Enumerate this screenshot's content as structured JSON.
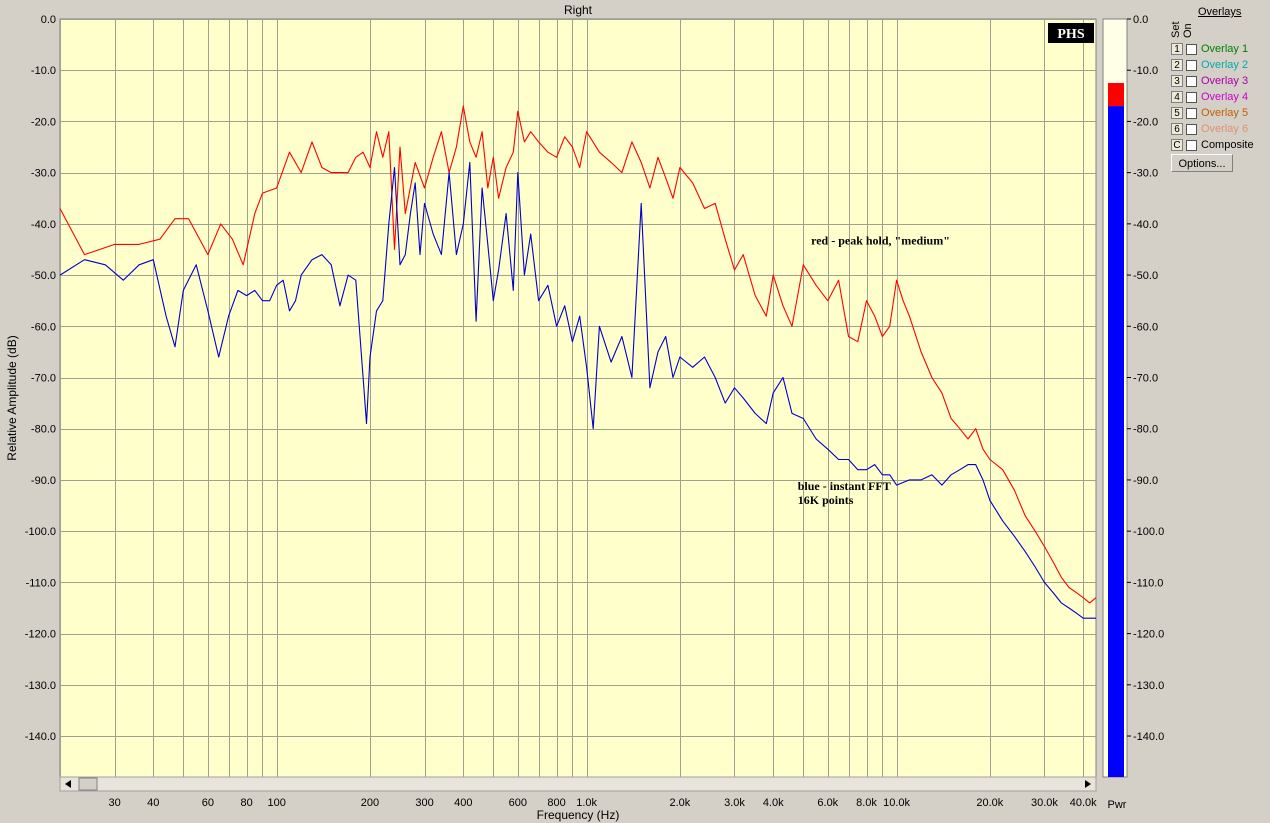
{
  "window": {
    "title": "Right"
  },
  "chart_data": {
    "type": "line",
    "title": "Right",
    "xlabel": "Frequency (Hz)",
    "ylabel": "Relative Amplitude (dB)",
    "xscale": "log",
    "xlim": [
      20,
      44000
    ],
    "ylim": [
      -148,
      0
    ],
    "grid": true,
    "x_tick_labels": [
      {
        "f": 30,
        "label": "30"
      },
      {
        "f": 40,
        "label": "40"
      },
      {
        "f": 60,
        "label": "60"
      },
      {
        "f": 80,
        "label": "80"
      },
      {
        "f": 100,
        "label": "100"
      },
      {
        "f": 200,
        "label": "200"
      },
      {
        "f": 300,
        "label": "300"
      },
      {
        "f": 400,
        "label": "400"
      },
      {
        "f": 600,
        "label": "600"
      },
      {
        "f": 800,
        "label": "800"
      },
      {
        "f": 1000,
        "label": "1.0k"
      },
      {
        "f": 2000,
        "label": "2.0k"
      },
      {
        "f": 3000,
        "label": "3.0k"
      },
      {
        "f": 4000,
        "label": "4.0k"
      },
      {
        "f": 6000,
        "label": "6.0k"
      },
      {
        "f": 8000,
        "label": "8.0k"
      },
      {
        "f": 10000,
        "label": "10.0k"
      },
      {
        "f": 20000,
        "label": "20.0k"
      },
      {
        "f": 30000,
        "label": "30.0k"
      },
      {
        "f": 40000,
        "label": "40.0k"
      }
    ],
    "y_ticks": [
      0,
      -10,
      -20,
      -30,
      -40,
      -50,
      -60,
      -70,
      -80,
      -90,
      -100,
      -110,
      -120,
      -130,
      -140
    ],
    "y_tick_labels": [
      "0.0",
      "-10.0",
      "-20.0",
      "-30.0",
      "-40.0",
      "-50.0",
      "-60.0",
      "-70.0",
      "-80.0",
      "-90.0",
      "-100.0",
      "-110.0",
      "-120.0",
      "-130.0",
      "-140.0"
    ],
    "series": [
      {
        "color": "#ff0000",
        "points": [
          [
            20,
            -37
          ],
          [
            24,
            -46
          ],
          [
            30,
            -44
          ],
          [
            36,
            -44
          ],
          [
            42,
            -43
          ],
          [
            47,
            -39
          ],
          [
            52,
            -39
          ],
          [
            60,
            -46
          ],
          [
            66,
            -40
          ],
          [
            72,
            -43
          ],
          [
            78,
            -48
          ],
          [
            85,
            -38
          ],
          [
            90,
            -34
          ],
          [
            100,
            -33
          ],
          [
            110,
            -26
          ],
          [
            120,
            -30
          ],
          [
            130,
            -24
          ],
          [
            140,
            -29
          ],
          [
            150,
            -30
          ],
          [
            160,
            -30
          ],
          [
            170,
            -30
          ],
          [
            180,
            -27
          ],
          [
            190,
            -26
          ],
          [
            200,
            -29
          ],
          [
            210,
            -22
          ],
          [
            220,
            -27
          ],
          [
            230,
            -22
          ],
          [
            240,
            -45
          ],
          [
            250,
            -25
          ],
          [
            260,
            -38
          ],
          [
            280,
            -28
          ],
          [
            300,
            -33
          ],
          [
            320,
            -27
          ],
          [
            340,
            -22
          ],
          [
            360,
            -30
          ],
          [
            380,
            -25
          ],
          [
            400,
            -17
          ],
          [
            420,
            -24
          ],
          [
            440,
            -27
          ],
          [
            460,
            -22
          ],
          [
            480,
            -33
          ],
          [
            500,
            -27
          ],
          [
            520,
            -35
          ],
          [
            550,
            -29
          ],
          [
            580,
            -26
          ],
          [
            600,
            -18
          ],
          [
            630,
            -24
          ],
          [
            660,
            -22
          ],
          [
            700,
            -24
          ],
          [
            750,
            -26
          ],
          [
            800,
            -27
          ],
          [
            850,
            -23
          ],
          [
            900,
            -25
          ],
          [
            950,
            -29
          ],
          [
            1000,
            -22
          ],
          [
            1100,
            -26
          ],
          [
            1200,
            -28
          ],
          [
            1300,
            -30
          ],
          [
            1400,
            -24
          ],
          [
            1500,
            -28
          ],
          [
            1600,
            -33
          ],
          [
            1700,
            -27
          ],
          [
            1800,
            -31
          ],
          [
            1900,
            -35
          ],
          [
            2000,
            -29
          ],
          [
            2200,
            -32
          ],
          [
            2400,
            -37
          ],
          [
            2600,
            -36
          ],
          [
            2800,
            -43
          ],
          [
            3000,
            -49
          ],
          [
            3200,
            -46
          ],
          [
            3500,
            -54
          ],
          [
            3800,
            -58
          ],
          [
            4000,
            -50
          ],
          [
            4300,
            -56
          ],
          [
            4600,
            -60
          ],
          [
            5000,
            -48
          ],
          [
            5500,
            -52
          ],
          [
            6000,
            -55
          ],
          [
            6500,
            -51
          ],
          [
            7000,
            -62
          ],
          [
            7500,
            -63
          ],
          [
            8000,
            -55
          ],
          [
            8500,
            -58
          ],
          [
            9000,
            -62
          ],
          [
            9500,
            -60
          ],
          [
            10000,
            -51
          ],
          [
            10500,
            -55
          ],
          [
            11000,
            -58
          ],
          [
            12000,
            -65
          ],
          [
            13000,
            -70
          ],
          [
            14000,
            -73
          ],
          [
            15000,
            -78
          ],
          [
            16000,
            -80
          ],
          [
            17000,
            -82
          ],
          [
            18000,
            -80
          ],
          [
            19000,
            -84
          ],
          [
            20000,
            -86
          ],
          [
            22000,
            -88
          ],
          [
            24000,
            -92
          ],
          [
            26000,
            -97
          ],
          [
            28000,
            -100
          ],
          [
            30000,
            -103
          ],
          [
            32000,
            -106
          ],
          [
            34000,
            -109
          ],
          [
            36000,
            -111
          ],
          [
            38000,
            -112
          ],
          [
            40000,
            -113
          ],
          [
            42000,
            -114
          ],
          [
            44000,
            -113
          ]
        ]
      },
      {
        "color": "#0000cc",
        "points": [
          [
            20,
            -50
          ],
          [
            24,
            -47
          ],
          [
            28,
            -48
          ],
          [
            32,
            -51
          ],
          [
            36,
            -48
          ],
          [
            40,
            -47
          ],
          [
            44,
            -58
          ],
          [
            47,
            -64
          ],
          [
            50,
            -53
          ],
          [
            55,
            -48
          ],
          [
            60,
            -57
          ],
          [
            65,
            -66
          ],
          [
            70,
            -58
          ],
          [
            75,
            -53
          ],
          [
            80,
            -54
          ],
          [
            85,
            -53
          ],
          [
            90,
            -55
          ],
          [
            95,
            -55
          ],
          [
            100,
            -52
          ],
          [
            105,
            -51
          ],
          [
            110,
            -57
          ],
          [
            115,
            -55
          ],
          [
            120,
            -50
          ],
          [
            130,
            -47
          ],
          [
            140,
            -46
          ],
          [
            150,
            -48
          ],
          [
            160,
            -56
          ],
          [
            170,
            -50
          ],
          [
            180,
            -51
          ],
          [
            190,
            -70
          ],
          [
            195,
            -79
          ],
          [
            200,
            -66
          ],
          [
            210,
            -57
          ],
          [
            220,
            -55
          ],
          [
            230,
            -40
          ],
          [
            240,
            -29
          ],
          [
            250,
            -48
          ],
          [
            260,
            -46
          ],
          [
            270,
            -38
          ],
          [
            280,
            -32
          ],
          [
            290,
            -46
          ],
          [
            300,
            -36
          ],
          [
            320,
            -42
          ],
          [
            340,
            -46
          ],
          [
            360,
            -30
          ],
          [
            380,
            -46
          ],
          [
            400,
            -40
          ],
          [
            420,
            -28
          ],
          [
            440,
            -59
          ],
          [
            460,
            -33
          ],
          [
            480,
            -44
          ],
          [
            500,
            -55
          ],
          [
            520,
            -49
          ],
          [
            550,
            -38
          ],
          [
            580,
            -53
          ],
          [
            600,
            -30
          ],
          [
            630,
            -50
          ],
          [
            660,
            -42
          ],
          [
            700,
            -55
          ],
          [
            750,
            -52
          ],
          [
            800,
            -60
          ],
          [
            850,
            -56
          ],
          [
            900,
            -63
          ],
          [
            950,
            -58
          ],
          [
            1000,
            -68
          ],
          [
            1050,
            -80
          ],
          [
            1100,
            -60
          ],
          [
            1200,
            -67
          ],
          [
            1300,
            -62
          ],
          [
            1400,
            -70
          ],
          [
            1500,
            -36
          ],
          [
            1600,
            -72
          ],
          [
            1700,
            -65
          ],
          [
            1800,
            -62
          ],
          [
            1900,
            -70
          ],
          [
            2000,
            -66
          ],
          [
            2200,
            -68
          ],
          [
            2400,
            -66
          ],
          [
            2600,
            -70
          ],
          [
            2800,
            -75
          ],
          [
            3000,
            -72
          ],
          [
            3200,
            -74
          ],
          [
            3500,
            -77
          ],
          [
            3800,
            -79
          ],
          [
            4000,
            -73
          ],
          [
            4300,
            -70
          ],
          [
            4600,
            -77
          ],
          [
            5000,
            -78
          ],
          [
            5500,
            -82
          ],
          [
            6000,
            -84
          ],
          [
            6500,
            -86
          ],
          [
            7000,
            -86
          ],
          [
            7500,
            -88
          ],
          [
            8000,
            -88
          ],
          [
            8500,
            -87
          ],
          [
            9000,
            -89
          ],
          [
            9500,
            -89
          ],
          [
            10000,
            -91
          ],
          [
            11000,
            -90
          ],
          [
            12000,
            -90
          ],
          [
            13000,
            -89
          ],
          [
            14000,
            -91
          ],
          [
            15000,
            -89
          ],
          [
            16000,
            -88
          ],
          [
            17000,
            -87
          ],
          [
            18000,
            -87
          ],
          [
            19000,
            -90
          ],
          [
            20000,
            -94
          ],
          [
            22000,
            -98
          ],
          [
            24000,
            -101
          ],
          [
            26000,
            -104
          ],
          [
            28000,
            -107
          ],
          [
            30000,
            -110
          ],
          [
            32000,
            -112
          ],
          [
            34000,
            -114
          ],
          [
            36000,
            -115
          ],
          [
            38000,
            -116
          ],
          [
            40000,
            -117
          ],
          [
            42000,
            -117
          ],
          [
            44000,
            -117
          ]
        ]
      }
    ],
    "annotations": [
      {
        "lines": [
          "red - peak hold, \"medium\""
        ],
        "f": 5300,
        "db": -44
      },
      {
        "lines": [
          "blue - instant FFT",
          "16K points"
        ],
        "f": 4800,
        "db": -92
      }
    ],
    "watermark": "PHS"
  },
  "power_meter": {
    "label": "Pwr",
    "peak_hold_db": -12.5,
    "level_db": -17,
    "scale_labels": [
      "0.0",
      "-10.0",
      "-20.0",
      "-30.0",
      "-40.0",
      "-50.0",
      "-60.0",
      "-70.0",
      "-80.0",
      "-90.0",
      "-100.0",
      "-110.0",
      "-120.0",
      "-130.0",
      "-140.0"
    ]
  },
  "overlays": {
    "title": "Overlays",
    "col_set": "Set",
    "col_on": "On",
    "items": [
      {
        "key": "1",
        "label": "Overlay 1",
        "color": "#008000"
      },
      {
        "key": "2",
        "label": "Overlay 2",
        "color": "#00aaaa"
      },
      {
        "key": "3",
        "label": "Overlay 3",
        "color": "#aa00aa"
      },
      {
        "key": "4",
        "label": "Overlay 4",
        "color": "#cc00cc"
      },
      {
        "key": "5",
        "label": "Overlay 5",
        "color": "#c06000"
      },
      {
        "key": "6",
        "label": "Overlay 6",
        "color": "#e09070"
      },
      {
        "key": "C",
        "label": "Composite",
        "color": "#000000"
      }
    ],
    "options_label": "Options..."
  }
}
